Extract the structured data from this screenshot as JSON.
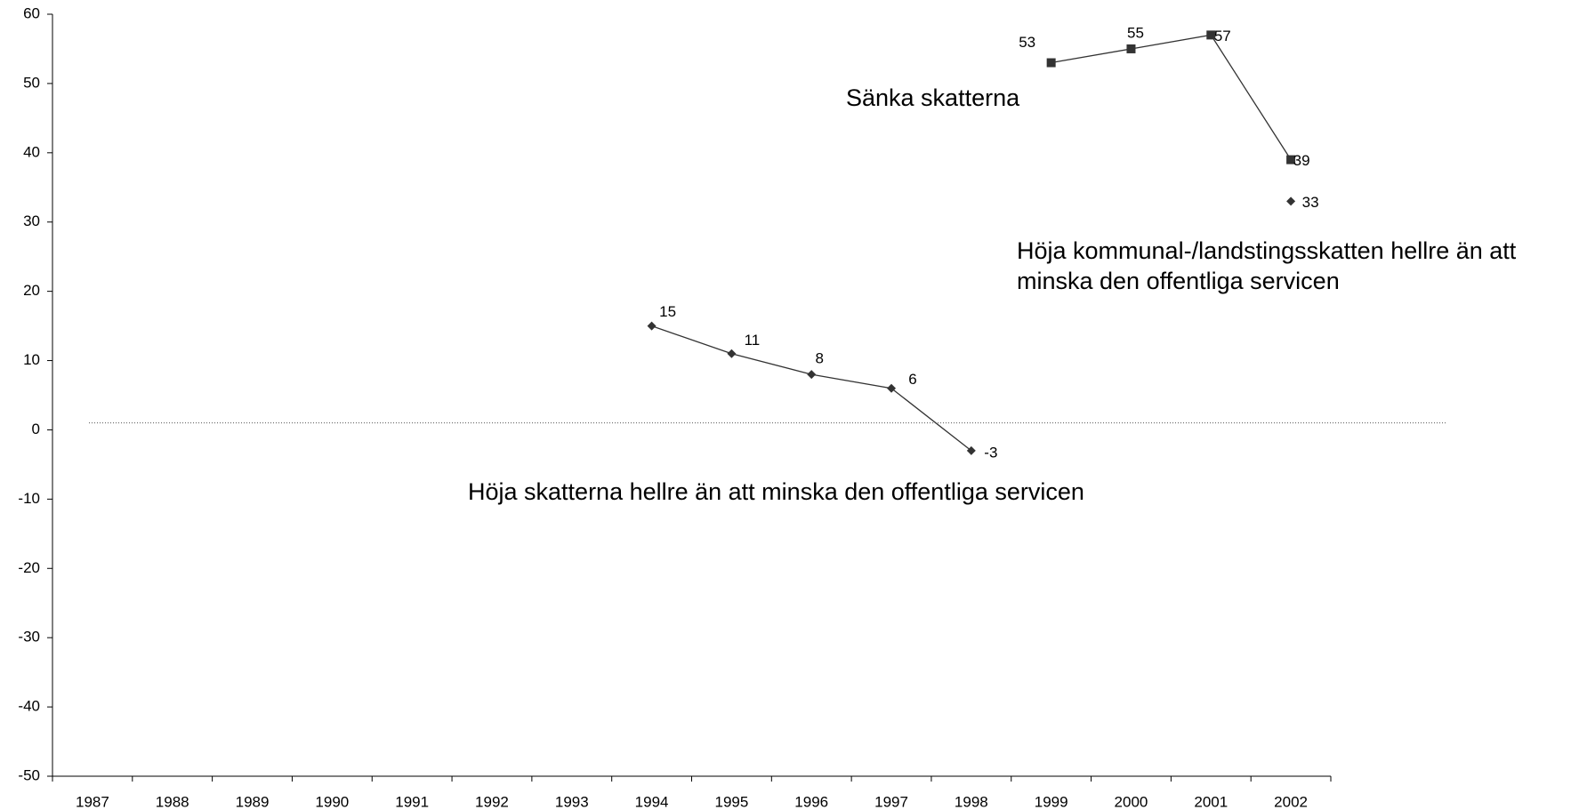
{
  "chart_data": {
    "type": "line",
    "categories": [
      "1987",
      "1988",
      "1989",
      "1990",
      "1991",
      "1992",
      "1993",
      "1994",
      "1995",
      "1996",
      "1997",
      "1998",
      "1999",
      "2000",
      "2001",
      "2002"
    ],
    "series": [
      {
        "name": "Sänka skatterna",
        "color": "#333333",
        "marker": "square",
        "values": [
          null,
          null,
          null,
          null,
          null,
          null,
          null,
          null,
          null,
          null,
          null,
          null,
          53,
          55,
          57,
          39
        ]
      },
      {
        "name": "Höja skatterna hellre än att minska den offentliga servicen",
        "color": "#333333",
        "marker": "diamond",
        "values": [
          null,
          null,
          null,
          null,
          null,
          null,
          null,
          15,
          11,
          8,
          6,
          -3,
          null,
          null,
          null,
          null
        ]
      },
      {
        "name": "Höja kommunal-/landstingsskatten hellre än att minska den offentliga servicen",
        "color": "#333333",
        "marker": "diamond",
        "values": [
          null,
          null,
          null,
          null,
          null,
          null,
          null,
          null,
          null,
          null,
          null,
          null,
          null,
          null,
          null,
          33
        ]
      }
    ],
    "ylim": [
      -50,
      60
    ],
    "yticks": [
      -50,
      -40,
      -30,
      -20,
      -10,
      0,
      10,
      20,
      30,
      40,
      50,
      60
    ],
    "reference_line": 1,
    "grid": false
  }
}
